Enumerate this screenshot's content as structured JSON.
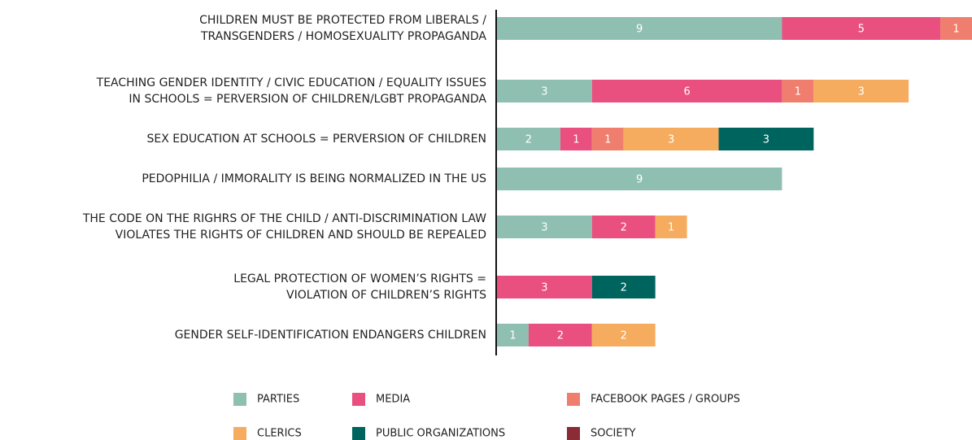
{
  "chart_data": {
    "type": "bar",
    "orientation": "horizontal",
    "stacked": true,
    "categories": [
      [
        "CHILDREN MUST BE PROTECTED FROM LIBERALS /",
        "TRANSGENDERS / HOMOSEXUALITY PROPAGANDA"
      ],
      [
        "TEACHING GENDER IDENTITY / CIVIC EDUCATION / EQUALITY ISSUES",
        "IN SCHOOLS = PERVERSION OF CHILDREN/LGBT PROPAGANDA"
      ],
      [
        "SEX EDUCATION AT SCHOOLS = PERVERSION OF CHILDREN"
      ],
      [
        "PEDOPHILIA / IMMORALITY IS BEING NORMALIZED IN THE US"
      ],
      [
        "THE CODE ON THE RIGHRS OF THE CHILD / ANTI-DISCRIMINATION LAW",
        "VIOLATES THE RIGHTS OF CHILDREN AND SHOULD BE REPEALED"
      ],
      [
        "LEGAL PROTECTION OF WOMEN’S RIGHTS =",
        "VIOLATION OF CHILDREN’S RIGHTS"
      ],
      [
        "GENDER SELF-IDENTIFICATION ENDANGERS CHILDREN"
      ]
    ],
    "series": [
      {
        "name": "PARTIES",
        "color": "#8fbfb1",
        "values": [
          9,
          3,
          2,
          9,
          3,
          null,
          1
        ]
      },
      {
        "name": "MEDIA",
        "color": "#e94f7f",
        "values": [
          5,
          6,
          1,
          null,
          2,
          3,
          2
        ]
      },
      {
        "name": "FACEBOOK PAGES / GROUPS",
        "color": "#f07e6e",
        "values": [
          1,
          1,
          1,
          null,
          null,
          null,
          null
        ]
      },
      {
        "name": "CLERICS",
        "color": "#f6ac5f",
        "values": [
          null,
          3,
          3,
          null,
          1,
          null,
          2
        ]
      },
      {
        "name": "PUBLIC ORGANIZATIONS",
        "color": "#00645e",
        "values": [
          null,
          null,
          3,
          null,
          null,
          2,
          null
        ]
      },
      {
        "name": "SOCIETY",
        "color": "#8b2b35",
        "values": [
          null,
          null,
          null,
          null,
          null,
          null,
          null
        ]
      }
    ]
  }
}
